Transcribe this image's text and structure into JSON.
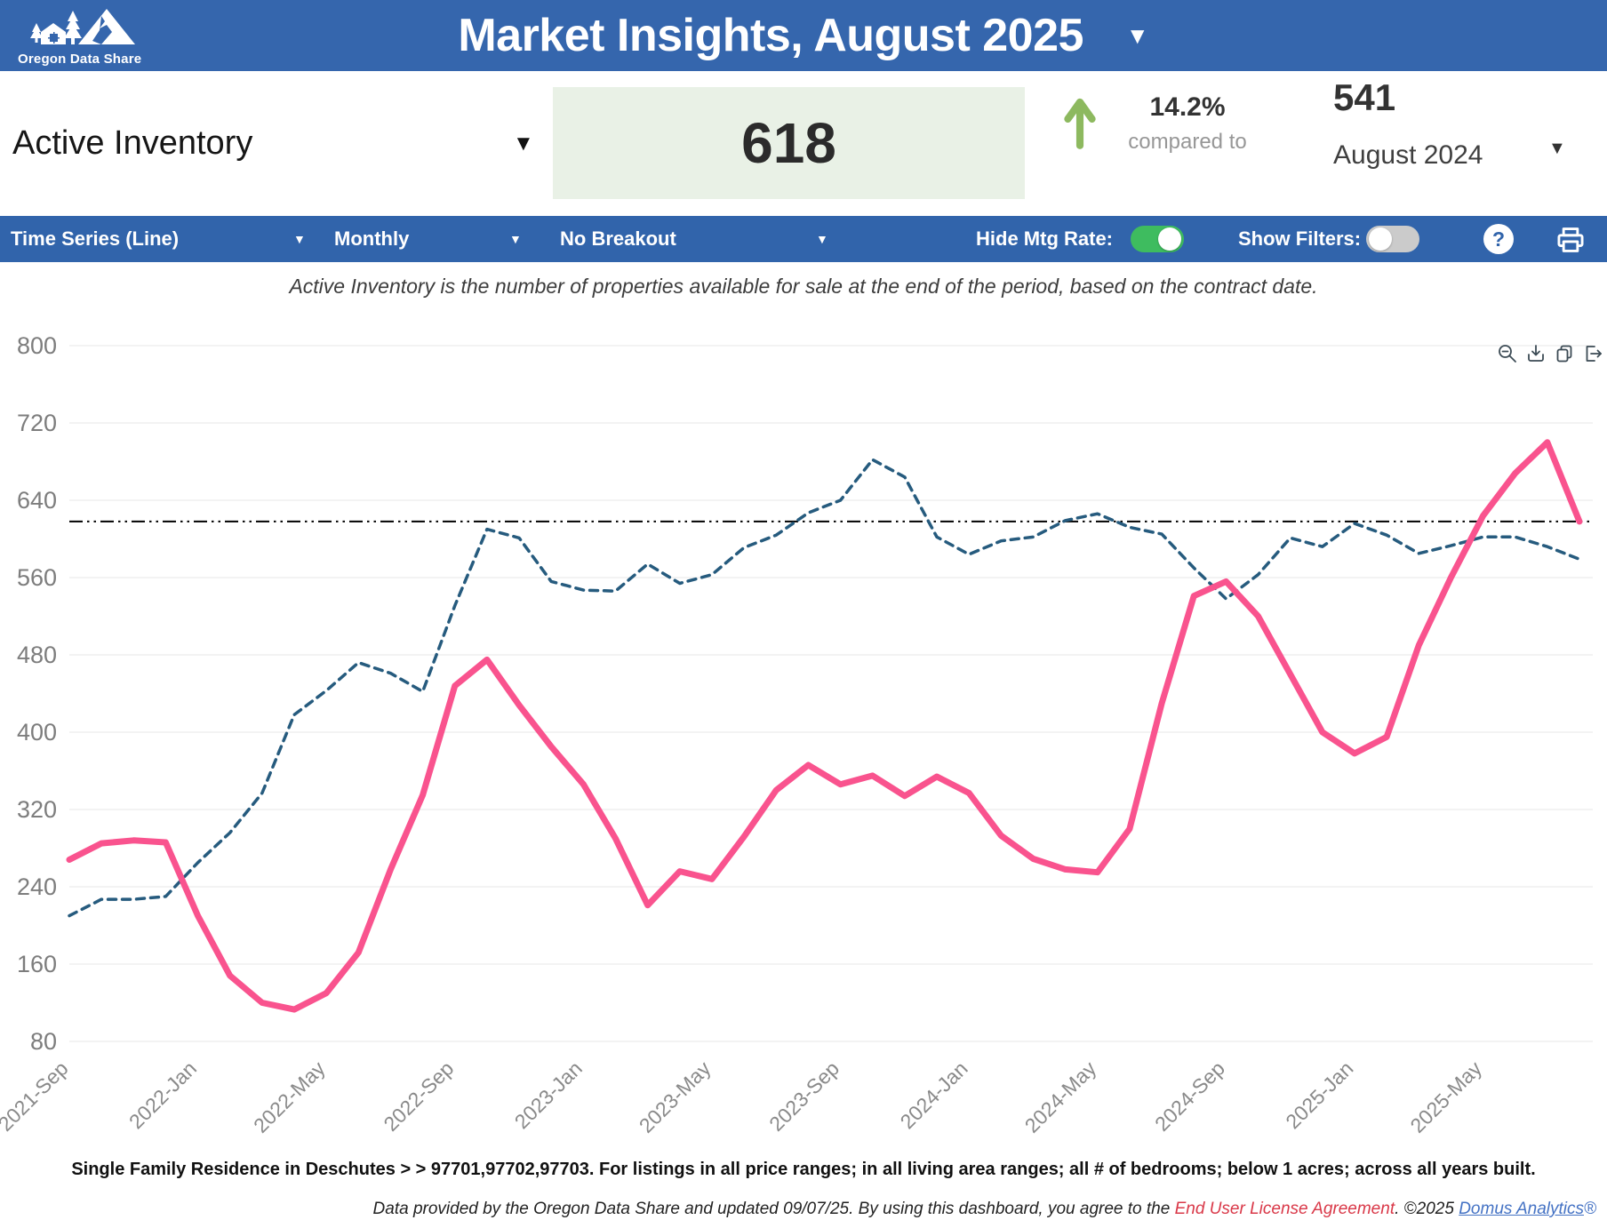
{
  "header": {
    "logo_text": "Oregon Data Share",
    "title": "Market Insights, August 2025"
  },
  "kpi": {
    "metric_label": "Active Inventory",
    "value": "618",
    "change_pct": "14.2%",
    "compared_to": "compared to",
    "compare_value": "541",
    "compare_period": "August 2024"
  },
  "toolbar": {
    "chart_type": "Time Series (Line)",
    "frequency": "Monthly",
    "breakout": "No Breakout",
    "hide_mtg_rate_label": "Hide Mtg Rate:",
    "hide_mtg_rate_on": true,
    "show_filters_label": "Show Filters:",
    "show_filters_on": false,
    "help_label": "?"
  },
  "subtitle": "Active Inventory is the number of properties available for sale at the end of the period, based on the contract date.",
  "chart_data": {
    "type": "line",
    "months": [
      "2021-Sep",
      "2021-Oct",
      "2021-Nov",
      "2021-Dec",
      "2022-Jan",
      "2022-Feb",
      "2022-Mar",
      "2022-Apr",
      "2022-May",
      "2022-Jun",
      "2022-Jul",
      "2022-Aug",
      "2022-Sep",
      "2022-Oct",
      "2022-Nov",
      "2022-Dec",
      "2023-Jan",
      "2023-Feb",
      "2023-Mar",
      "2023-Apr",
      "2023-May",
      "2023-Jun",
      "2023-Jul",
      "2023-Aug",
      "2023-Sep",
      "2023-Oct",
      "2023-Nov",
      "2023-Dec",
      "2024-Jan",
      "2024-Feb",
      "2024-Mar",
      "2024-Apr",
      "2024-May",
      "2024-Jun",
      "2024-Jul",
      "2024-Aug",
      "2024-Sep",
      "2024-Oct",
      "2024-Nov",
      "2024-Dec",
      "2025-Jan",
      "2025-Feb",
      "2025-Mar",
      "2025-Apr",
      "2025-May",
      "2025-Jun",
      "2025-Jul",
      "2025-Aug"
    ],
    "x_tick_labels": [
      "2021-Sep",
      "2022-Jan",
      "2022-May",
      "2022-Sep",
      "2023-Jan",
      "2023-May",
      "2023-Sep",
      "2024-Jan",
      "2024-May",
      "2024-Sep",
      "2025-Jan",
      "2025-May"
    ],
    "ylim": [
      80,
      800
    ],
    "ytick_step": 80,
    "grid": "horizontal",
    "legend": "none",
    "series": [
      {
        "name": "Active Inventory",
        "style": "solid",
        "color": "#f9538e",
        "values": [
          268,
          285,
          288,
          286,
          210,
          148,
          120,
          113,
          130,
          172,
          258,
          335,
          448,
          475,
          428,
          385,
          346,
          290,
          221,
          256,
          248,
          292,
          340,
          366,
          346,
          355,
          334,
          354,
          337,
          293,
          269,
          258,
          255,
          300,
          430,
          541,
          556,
          520,
          460,
          400,
          378,
          395,
          490,
          560,
          624,
          668,
          700,
          618
        ]
      },
      {
        "name": "Mtg Rate (dashed, hidden axis)",
        "style": "dashed",
        "color": "#265b7e",
        "values": [
          210,
          227,
          227,
          230,
          265,
          296,
          337,
          418,
          443,
          472,
          461,
          442,
          531,
          610,
          601,
          556,
          547,
          546,
          574,
          554,
          563,
          591,
          604,
          627,
          640,
          682,
          664,
          602,
          584,
          598,
          602,
          619,
          626,
          612,
          605,
          570,
          538,
          563,
          601,
          592,
          616,
          604,
          585,
          593,
          602,
          602,
          592,
          579
        ]
      }
    ],
    "reference_line": {
      "value": 618,
      "style": "dash-dot",
      "color": "#000000"
    }
  },
  "chart_toolbar": {
    "icons": [
      "zoom-out",
      "download",
      "copy",
      "export"
    ]
  },
  "footnote": "Single Family Residence in Deschutes > > 97701,97702,97703. For listings in all price ranges; in all living area ranges; all # of bedrooms; below 1 acres; across all years built.",
  "footer": {
    "text_before": "Data provided by the Oregon Data Share and updated 09/07/25.  By using this dashboard, you agree to the ",
    "eula_link": "End User License Agreement",
    "text_middle": ".  ©2025 ",
    "brand_link": "Domus Analytics",
    "registered": "®"
  },
  "colors": {
    "header_blue": "#3566ad",
    "toolbar_blue": "#3164ab",
    "kpi_box_green": "#e9f1e6",
    "accent_green": "#8db95f",
    "toggle_on_green": "#3ebc5f",
    "pink_line": "#f9538e",
    "navy_dashed": "#265b7e",
    "eula_red": "#d93848",
    "brand_blue": "#4472c4"
  }
}
